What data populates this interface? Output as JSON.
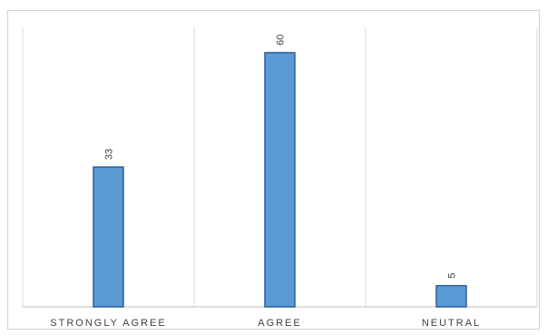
{
  "chart_data": {
    "type": "bar",
    "categories": [
      "STRONGLY AGREE",
      "AGREE",
      "NEUTRAL"
    ],
    "values": [
      33,
      60,
      5
    ],
    "data_labels": [
      "33",
      "60",
      "5"
    ],
    "ylim": [
      0,
      66
    ],
    "grid": true,
    "legend": "none",
    "colors": {
      "bar_fill": "#5b9bd5",
      "bar_stroke": "#2e5d9a",
      "grid": "#d9d9d9",
      "axis": "#bfbfbf",
      "text": "#404040"
    }
  }
}
